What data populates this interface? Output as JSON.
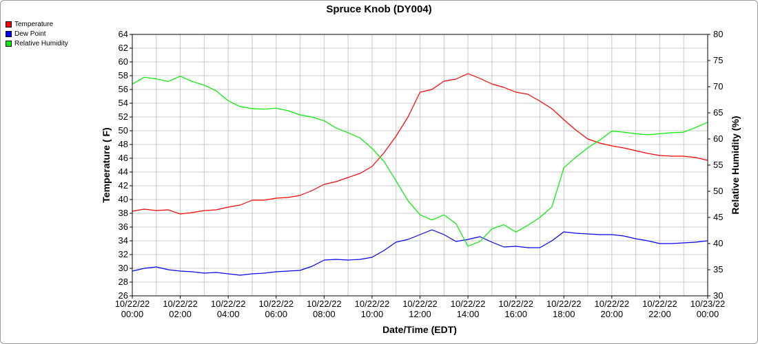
{
  "chart_data": {
    "type": "line",
    "title": "Spruce Knob (DY004)",
    "xlabel": "Date/Time (EDT)",
    "ylabel_left": "Temperature ( F)",
    "ylabel_right": "Relative Humidity (%)",
    "ylim_left": [
      26,
      64
    ],
    "ylim_right": [
      30,
      80
    ],
    "left_ticks": [
      26,
      28,
      30,
      32,
      34,
      36,
      38,
      40,
      42,
      44,
      46,
      48,
      50,
      52,
      54,
      56,
      58,
      60,
      62,
      64
    ],
    "right_ticks": [
      30,
      35,
      40,
      45,
      50,
      55,
      60,
      65,
      70,
      75,
      80
    ],
    "x_ticks": [
      {
        "hour": 0,
        "date": "10/22/22",
        "time": "00:00"
      },
      {
        "hour": 2,
        "date": "10/22/22",
        "time": "02:00"
      },
      {
        "hour": 4,
        "date": "10/22/22",
        "time": "04:00"
      },
      {
        "hour": 6,
        "date": "10/22/22",
        "time": "06:00"
      },
      {
        "hour": 8,
        "date": "10/22/22",
        "time": "08:00"
      },
      {
        "hour": 10,
        "date": "10/22/22",
        "time": "10:00"
      },
      {
        "hour": 12,
        "date": "10/22/22",
        "time": "12:00"
      },
      {
        "hour": 14,
        "date": "10/22/22",
        "time": "14:00"
      },
      {
        "hour": 16,
        "date": "10/22/22",
        "time": "16:00"
      },
      {
        "hour": 18,
        "date": "10/22/22",
        "time": "18:00"
      },
      {
        "hour": 20,
        "date": "10/22/22",
        "time": "20:00"
      },
      {
        "hour": 22,
        "date": "10/22/22",
        "time": "22:00"
      },
      {
        "hour": 24,
        "date": "10/23/22",
        "time": "00:00"
      }
    ],
    "grid": true,
    "legend_position": "top-left",
    "series": [
      {
        "name": "Temperature",
        "color": "#ff0000",
        "axis": "left",
        "points": [
          [
            0,
            38.3
          ],
          [
            0.5,
            38.6
          ],
          [
            1,
            38.4
          ],
          [
            1.5,
            38.5
          ],
          [
            2,
            37.9
          ],
          [
            2.5,
            38.1
          ],
          [
            3,
            38.4
          ],
          [
            3.5,
            38.5
          ],
          [
            4,
            38.9
          ],
          [
            4.5,
            39.2
          ],
          [
            5,
            39.9
          ],
          [
            5.5,
            39.9
          ],
          [
            6,
            40.2
          ],
          [
            6.5,
            40.3
          ],
          [
            7,
            40.6
          ],
          [
            7.5,
            41.3
          ],
          [
            8,
            42.2
          ],
          [
            8.5,
            42.6
          ],
          [
            9,
            43.2
          ],
          [
            9.5,
            43.8
          ],
          [
            10,
            44.8
          ],
          [
            10.5,
            46.8
          ],
          [
            11,
            49.2
          ],
          [
            11.5,
            52.0
          ],
          [
            12,
            55.6
          ],
          [
            12.5,
            56.0
          ],
          [
            13,
            57.2
          ],
          [
            13.5,
            57.5
          ],
          [
            14,
            58.3
          ],
          [
            14.5,
            57.6
          ],
          [
            15,
            56.8
          ],
          [
            15.5,
            56.3
          ],
          [
            16,
            55.6
          ],
          [
            16.5,
            55.3
          ],
          [
            17,
            54.3
          ],
          [
            17.5,
            53.2
          ],
          [
            18,
            51.6
          ],
          [
            18.5,
            50.1
          ],
          [
            19,
            48.8
          ],
          [
            19.5,
            48.2
          ],
          [
            20,
            47.8
          ],
          [
            20.5,
            47.5
          ],
          [
            21,
            47.1
          ],
          [
            21.5,
            46.7
          ],
          [
            22,
            46.4
          ],
          [
            22.5,
            46.3
          ],
          [
            23,
            46.3
          ],
          [
            23.5,
            46.1
          ],
          [
            24,
            45.7
          ]
        ]
      },
      {
        "name": "Dew Point",
        "color": "#0000ff",
        "axis": "left",
        "points": [
          [
            0,
            29.6
          ],
          [
            0.5,
            30.0
          ],
          [
            1,
            30.2
          ],
          [
            1.5,
            29.8
          ],
          [
            2,
            29.6
          ],
          [
            2.5,
            29.5
          ],
          [
            3,
            29.3
          ],
          [
            3.5,
            29.4
          ],
          [
            4,
            29.2
          ],
          [
            4.5,
            29.0
          ],
          [
            5,
            29.2
          ],
          [
            5.5,
            29.3
          ],
          [
            6,
            29.5
          ],
          [
            6.5,
            29.6
          ],
          [
            7,
            29.7
          ],
          [
            7.5,
            30.3
          ],
          [
            8,
            31.2
          ],
          [
            8.5,
            31.3
          ],
          [
            9,
            31.2
          ],
          [
            9.5,
            31.3
          ],
          [
            10,
            31.6
          ],
          [
            10.5,
            32.6
          ],
          [
            11,
            33.8
          ],
          [
            11.5,
            34.2
          ],
          [
            12,
            34.9
          ],
          [
            12.5,
            35.6
          ],
          [
            13,
            34.9
          ],
          [
            13.5,
            33.9
          ],
          [
            14,
            34.2
          ],
          [
            14.5,
            34.6
          ],
          [
            15,
            33.8
          ],
          [
            15.5,
            33.1
          ],
          [
            16,
            33.2
          ],
          [
            16.5,
            33.0
          ],
          [
            17,
            33.0
          ],
          [
            17.5,
            34.0
          ],
          [
            18,
            35.3
          ],
          [
            18.5,
            35.1
          ],
          [
            19,
            35.0
          ],
          [
            19.5,
            34.9
          ],
          [
            20,
            34.9
          ],
          [
            20.5,
            34.7
          ],
          [
            21,
            34.3
          ],
          [
            21.5,
            34.0
          ],
          [
            22,
            33.6
          ],
          [
            22.5,
            33.6
          ],
          [
            23,
            33.7
          ],
          [
            23.5,
            33.8
          ],
          [
            24,
            34.0
          ]
        ]
      },
      {
        "name": "Relative Humidity",
        "color": "#00ee00",
        "axis": "right",
        "points": [
          [
            0,
            70.5
          ],
          [
            0.5,
            71.8
          ],
          [
            1,
            71.5
          ],
          [
            1.5,
            71.0
          ],
          [
            2,
            72.0
          ],
          [
            2.5,
            71.0
          ],
          [
            3,
            70.3
          ],
          [
            3.5,
            69.2
          ],
          [
            4,
            67.3
          ],
          [
            4.5,
            66.2
          ],
          [
            5,
            65.8
          ],
          [
            5.5,
            65.7
          ],
          [
            6,
            65.9
          ],
          [
            6.5,
            65.4
          ],
          [
            7,
            64.6
          ],
          [
            7.5,
            64.2
          ],
          [
            8,
            63.5
          ],
          [
            8.5,
            62.1
          ],
          [
            9,
            61.2
          ],
          [
            9.5,
            60.2
          ],
          [
            10,
            58.2
          ],
          [
            10.5,
            55.7
          ],
          [
            11,
            52.0
          ],
          [
            11.5,
            48.2
          ],
          [
            12,
            45.5
          ],
          [
            12.5,
            44.5
          ],
          [
            13,
            45.5
          ],
          [
            13.5,
            43.8
          ],
          [
            14,
            39.5
          ],
          [
            14.5,
            40.4
          ],
          [
            15,
            42.8
          ],
          [
            15.5,
            43.6
          ],
          [
            16,
            42.2
          ],
          [
            16.5,
            43.5
          ],
          [
            17,
            45.0
          ],
          [
            17.5,
            47.0
          ],
          [
            18,
            54.5
          ],
          [
            18.5,
            56.5
          ],
          [
            19,
            58.3
          ],
          [
            19.5,
            59.8
          ],
          [
            20,
            61.5
          ],
          [
            20.5,
            61.3
          ],
          [
            21,
            61.0
          ],
          [
            21.5,
            60.8
          ],
          [
            22,
            61.0
          ],
          [
            22.5,
            61.2
          ],
          [
            23,
            61.3
          ],
          [
            23.5,
            62.2
          ],
          [
            24,
            63.2
          ]
        ]
      }
    ]
  }
}
